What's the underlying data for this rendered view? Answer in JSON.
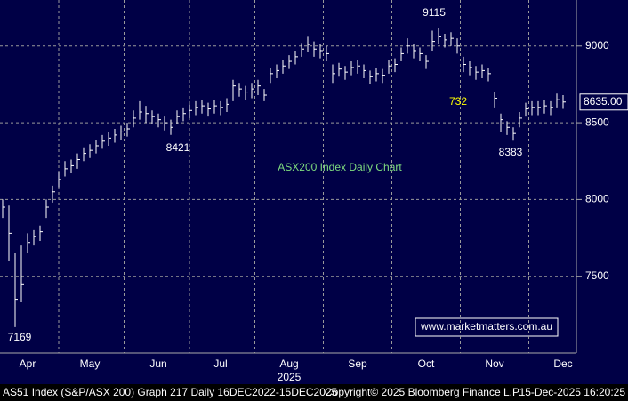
{
  "chart_data": {
    "type": "ohlc",
    "title": "ASX200 Index Daily Chart",
    "categories": [
      null,
      null,
      null,
      null,
      "Apr",
      null,
      null,
      null,
      null,
      null,
      null,
      null,
      null,
      null,
      "May",
      null,
      null,
      null,
      null,
      null,
      null,
      null,
      null,
      null,
      null,
      "Jun",
      null,
      null,
      null,
      null,
      null,
      null,
      null,
      null,
      null,
      "Jul",
      null,
      null,
      null,
      null,
      null,
      null,
      null,
      null,
      null,
      null,
      "Aug",
      null,
      null,
      null,
      null,
      null,
      null,
      null,
      null,
      null,
      null,
      "Sep",
      null,
      null,
      null,
      null,
      null,
      null,
      null,
      null,
      null,
      null,
      "Oct",
      null,
      null,
      null,
      null,
      null,
      null,
      null,
      null,
      null,
      null,
      "Nov",
      null,
      null,
      null,
      null,
      null,
      null,
      null,
      null,
      null,
      null,
      "Dec"
    ],
    "year_label": "2025",
    "close": [
      7950,
      7780,
      7350,
      7450,
      7720,
      7760,
      7790,
      7950,
      8050,
      8130,
      8200,
      8220,
      8260,
      8300,
      8320,
      8350,
      8380,
      8400,
      8420,
      8440,
      8460,
      8530,
      8570,
      8560,
      8540,
      8520,
      8500,
      8470,
      8540,
      8560,
      8580,
      8600,
      8610,
      8590,
      8610,
      8600,
      8620,
      8740,
      8720,
      8700,
      8720,
      8740,
      8680,
      8820,
      8840,
      8870,
      8900,
      8930,
      8980,
      9010,
      8980,
      8970,
      8950,
      8820,
      8850,
      8830,
      8860,
      8870,
      8840,
      8800,
      8820,
      8810,
      8870,
      8880,
      8950,
      9000,
      8970,
      8950,
      8900,
      9030,
      9060,
      9040,
      9050,
      9000,
      8880,
      8860,
      8830,
      8840,
      8820,
      8660,
      8520,
      8470,
      8430,
      8530,
      8590,
      8600,
      8600,
      8610,
      8600,
      8650,
      8635
    ],
    "high": [
      8000,
      7960,
      7650,
      7700,
      7780,
      7800,
      7830,
      8000,
      8090,
      8180,
      8250,
      8260,
      8300,
      8340,
      8360,
      8390,
      8420,
      8440,
      8460,
      8480,
      8500,
      8580,
      8640,
      8610,
      8580,
      8560,
      8540,
      8520,
      8580,
      8600,
      8620,
      8640,
      8650,
      8630,
      8650,
      8640,
      8660,
      8780,
      8760,
      8740,
      8760,
      8780,
      8720,
      8860,
      8880,
      8910,
      8940,
      8970,
      9020,
      9060,
      9030,
      9010,
      9000,
      8880,
      8890,
      8870,
      8900,
      8910,
      8880,
      8840,
      8860,
      8850,
      8910,
      8920,
      8990,
      9050,
      9010,
      8990,
      8940,
      9100,
      9115,
      9080,
      9090,
      9050,
      8930,
      8900,
      8870,
      8880,
      8860,
      8700,
      8560,
      8510,
      8470,
      8570,
      8630,
      8640,
      8640,
      8650,
      8640,
      8690,
      8680
    ],
    "low": [
      7880,
      7600,
      7169,
      7330,
      7650,
      7700,
      7730,
      7880,
      7980,
      8080,
      8150,
      8170,
      8200,
      8250,
      8270,
      8300,
      8330,
      8350,
      8370,
      8390,
      8410,
      8470,
      8520,
      8500,
      8490,
      8470,
      8450,
      8421,
      8490,
      8510,
      8530,
      8550,
      8560,
      8540,
      8560,
      8550,
      8570,
      8640,
      8670,
      8650,
      8660,
      8680,
      8640,
      8760,
      8790,
      8820,
      8850,
      8880,
      8930,
      8960,
      8930,
      8920,
      8900,
      8760,
      8800,
      8780,
      8810,
      8820,
      8790,
      8750,
      8770,
      8760,
      8820,
      8830,
      8900,
      8950,
      8920,
      8900,
      8850,
      8970,
      9010,
      8990,
      9000,
      8950,
      8830,
      8810,
      8780,
      8790,
      8770,
      8600,
      8440,
      8420,
      8383,
      8470,
      8540,
      8550,
      8550,
      8560,
      8550,
      8600,
      8590
    ],
    "color": "#ffffff",
    "ylim": [
      7000,
      9300
    ],
    "yticks": [
      7500,
      8000,
      8500,
      9000
    ],
    "grid": true,
    "last_price": {
      "value": 8635,
      "label": "8635.00"
    },
    "annotations": [
      "9115",
      "732",
      "8421",
      "8383",
      "7169"
    ],
    "watermark": "www.marketmatters.com.au",
    "footer": [
      "AS51 Index (S&P/ASX 200) Graph 217 Daily 16DEC2022-15DEC2025",
      "Copyright© 2025 Bloomberg Finance L.P.",
      "15-Dec-2025 16:20:25"
    ]
  }
}
